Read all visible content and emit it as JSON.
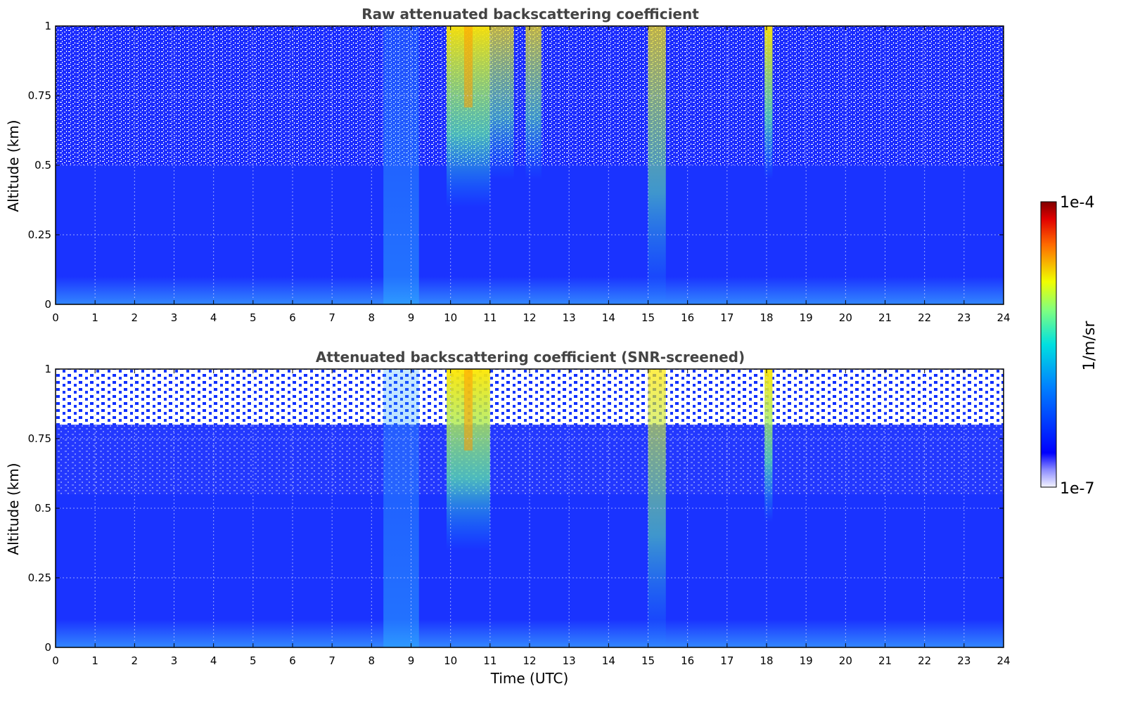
{
  "chart_data": [
    {
      "type": "heatmap",
      "title": "Raw attenuated backscattering coefficient",
      "xlabel": "",
      "ylabel": "Altitude (km)",
      "xlim": [
        0,
        24
      ],
      "ylim": [
        0,
        1
      ],
      "x_ticks": [
        "0",
        "1",
        "2",
        "3",
        "4",
        "5",
        "6",
        "7",
        "8",
        "9",
        "10",
        "11",
        "12",
        "13",
        "14",
        "15",
        "16",
        "17",
        "18",
        "19",
        "20",
        "21",
        "22",
        "23",
        "24"
      ],
      "y_ticks": [
        "0",
        "0.25",
        "0.5",
        "0.75",
        "1"
      ],
      "grid": true,
      "noise_above_km": 0.5,
      "features": [
        {
          "name": "boundary-layer aerosol",
          "time_range": [
            0,
            24
          ],
          "altitude_range": [
            0,
            0.1
          ],
          "intensity": "moderate"
        },
        {
          "name": "aerosol plume",
          "time_range": [
            8.3,
            9.2
          ],
          "altitude_range": [
            0,
            1
          ],
          "intensity": "moderate"
        },
        {
          "name": "precipitation fall streaks",
          "time_range": [
            9.9,
            11.0
          ],
          "altitude_range": [
            0.35,
            1
          ],
          "intensity": "high"
        },
        {
          "name": "precipitation fall streaks",
          "time_range": [
            11.0,
            11.6
          ],
          "altitude_range": [
            0.45,
            1
          ],
          "intensity": "moderate-high"
        },
        {
          "name": "precipitation fall streaks",
          "time_range": [
            11.9,
            12.3
          ],
          "altitude_range": [
            0.45,
            1
          ],
          "intensity": "moderate-high"
        },
        {
          "name": "rain streak",
          "time_range": [
            15.0,
            15.45
          ],
          "altitude_range": [
            0,
            1
          ],
          "intensity": "moderate-high"
        },
        {
          "name": "rain streak",
          "time_range": [
            17.95,
            18.15
          ],
          "altitude_range": [
            0.45,
            1
          ],
          "intensity": "high"
        }
      ]
    },
    {
      "type": "heatmap",
      "title": "Attenuated backscattering coefficient (SNR-screened)",
      "xlabel": "Time (UTC)",
      "ylabel": "Altitude (km)",
      "xlim": [
        0,
        24
      ],
      "ylim": [
        0,
        1
      ],
      "x_ticks": [
        "0",
        "1",
        "2",
        "3",
        "4",
        "5",
        "6",
        "7",
        "8",
        "9",
        "10",
        "11",
        "12",
        "13",
        "14",
        "15",
        "16",
        "17",
        "18",
        "19",
        "20",
        "21",
        "22",
        "23",
        "24"
      ],
      "y_ticks": [
        "0",
        "0.25",
        "0.5",
        "0.75",
        "1"
      ],
      "grid": true,
      "screened_above_km": 0.8,
      "features": [
        {
          "name": "boundary-layer aerosol",
          "time_range": [
            0,
            24
          ],
          "altitude_range": [
            0,
            0.1
          ],
          "intensity": "moderate"
        },
        {
          "name": "aerosol plume",
          "time_range": [
            8.3,
            9.2
          ],
          "altitude_range": [
            0,
            1
          ],
          "intensity": "moderate"
        },
        {
          "name": "precipitation fall streaks",
          "time_range": [
            9.9,
            11.0
          ],
          "altitude_range": [
            0.35,
            1
          ],
          "intensity": "high"
        },
        {
          "name": "rain streak",
          "time_range": [
            15.0,
            15.45
          ],
          "altitude_range": [
            0,
            1
          ],
          "intensity": "moderate-high"
        },
        {
          "name": "rain streak",
          "time_range": [
            17.95,
            18.15
          ],
          "altitude_range": [
            0.45,
            1
          ],
          "intensity": "high"
        }
      ]
    }
  ],
  "colorbar": {
    "label": "1/m/sr",
    "max_label": "1e-4",
    "min_label": "1e-7",
    "colormap": "jet",
    "low_color": "#f2f2ff"
  },
  "colors": {
    "background_field": "#1a33ff",
    "boundary_layer": "#2a8cff",
    "streak_high": "#ffe600",
    "streak_mid": "#38e0b0",
    "grid": "#cfd5ff"
  }
}
